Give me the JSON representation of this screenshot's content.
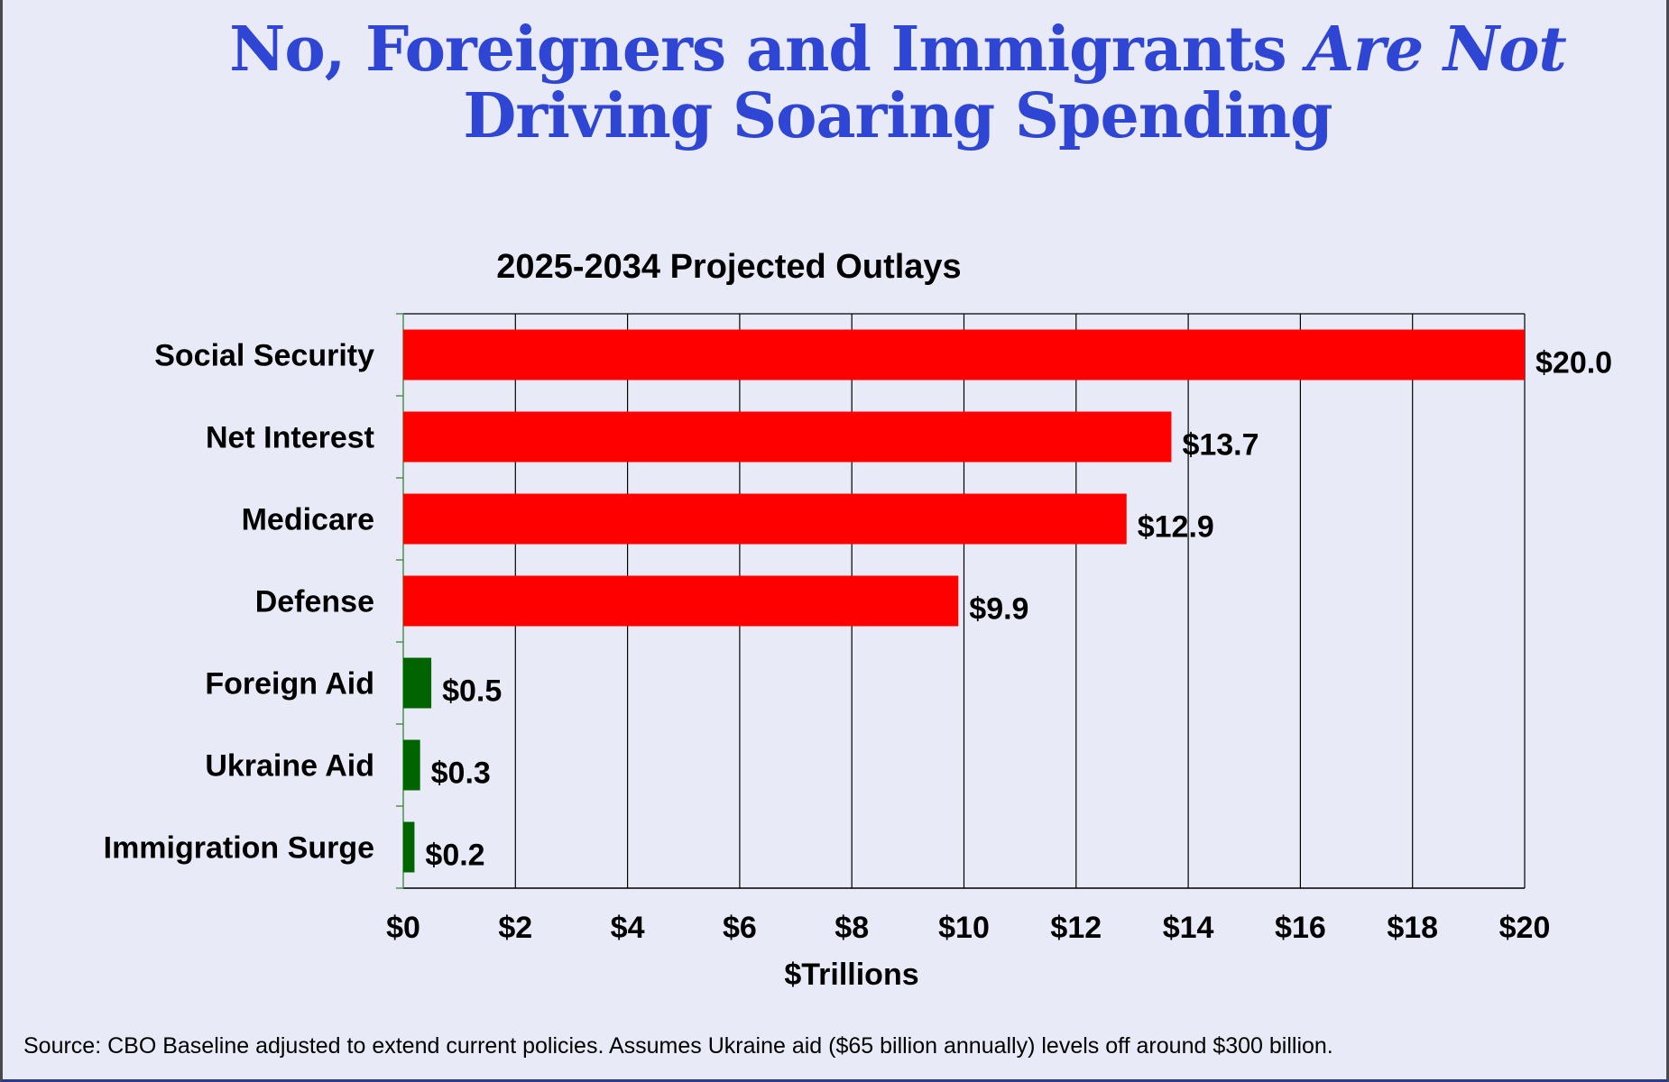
{
  "headline": {
    "line1_plain": "No, Foreigners and Immigrants ",
    "line1_emph": "Are Not",
    "line2": "Driving Soaring Spending"
  },
  "source": "Source: CBO Baseline adjusted to extend current policies. Assumes Ukraine aid ($65 billion annually) levels off around $300 billion.",
  "colors": {
    "background": "#e9eaf7",
    "headline": "#2f45d4",
    "bar_major": "#ff0000",
    "bar_minor": "#006400",
    "grid": "#000000"
  },
  "chart_data": {
    "type": "bar",
    "orientation": "horizontal",
    "title": "2025-2034 Projected Outlays",
    "xlabel": "$Trillions",
    "ylabel": "",
    "xlim": [
      0,
      20
    ],
    "xticks": [
      0,
      2,
      4,
      6,
      8,
      10,
      12,
      14,
      16,
      18,
      20
    ],
    "xtick_labels": [
      "$0",
      "$2",
      "$4",
      "$6",
      "$8",
      "$10",
      "$12",
      "$14",
      "$16",
      "$18",
      "$20"
    ],
    "grid": "vertical",
    "categories": [
      "Social Security",
      "Net Interest",
      "Medicare",
      "Defense",
      "Foreign Aid",
      "Ukraine Aid",
      "Immigration Surge"
    ],
    "values": [
      20.0,
      13.7,
      12.9,
      9.9,
      0.5,
      0.3,
      0.2
    ],
    "data_labels": [
      "$20.0",
      "$13.7",
      "$12.9",
      "$9.9",
      "$0.5",
      "$0.3",
      "$0.2"
    ],
    "bar_groups": [
      "major",
      "major",
      "major",
      "major",
      "minor",
      "minor",
      "minor"
    ]
  }
}
